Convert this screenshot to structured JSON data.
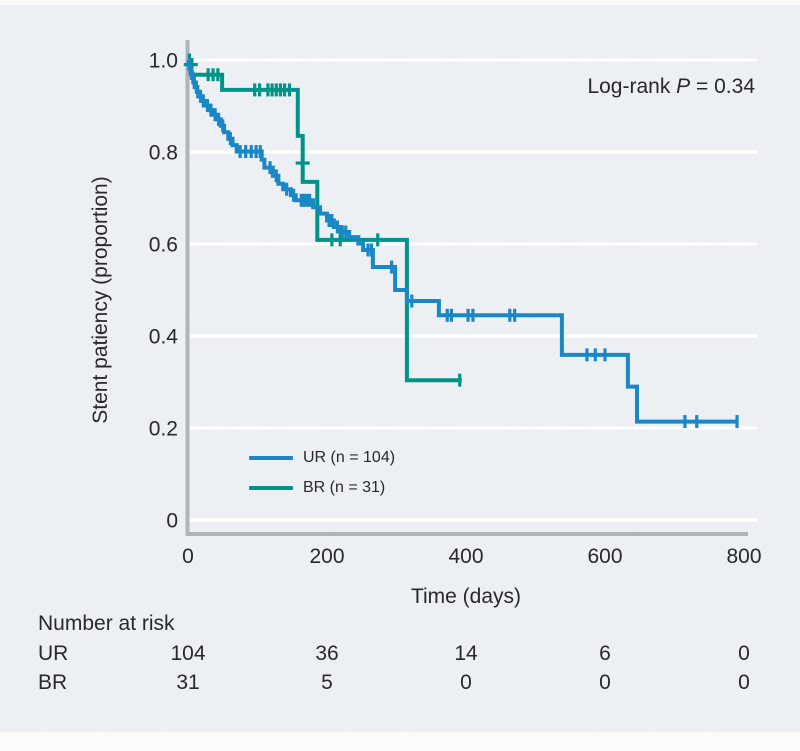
{
  "annotation": {
    "prefix": "Log-rank ",
    "italic": "P",
    "suffix": " = 0.34"
  },
  "risk_table": {
    "title": "Number at risk",
    "time_points": [
      0,
      200,
      400,
      600,
      800
    ],
    "rows": [
      {
        "label": "UR",
        "values": [
          "104",
          "36",
          "14",
          "6",
          "0"
        ]
      },
      {
        "label": "BR",
        "values": [
          "31",
          "5",
          "0",
          "0",
          "0"
        ]
      }
    ]
  },
  "chart_data": {
    "type": "line",
    "subtype": "kaplan-meier-step",
    "title": "",
    "xlabel": "Time (days)",
    "ylabel": "Stent patiency (proportion)",
    "xlim": [
      0,
      800
    ],
    "ylim": [
      0,
      1.0
    ],
    "xticks": [
      0,
      200,
      400,
      600,
      800
    ],
    "yticks": [
      {
        "v": 1.0,
        "label": "1.0"
      },
      {
        "v": 0.8,
        "label": "0.8"
      },
      {
        "v": 0.6,
        "label": "0.6"
      },
      {
        "v": 0.4,
        "label": "0.4"
      },
      {
        "v": 0.2,
        "label": "0.2"
      },
      {
        "v": 0.0,
        "label": "0"
      }
    ],
    "grid": "horizontal-white",
    "legend_position": "inside-bottom-left",
    "annotation_text": "Log-rank P = 0.34",
    "axis_color": "#b0b4b8",
    "gridline_color": "#ffffff",
    "text_color": "#27292b",
    "series": [
      {
        "name": "UR",
        "label": "UR (n = 104)",
        "n": 104,
        "color": "#1a87c6",
        "steps": [
          [
            0,
            1.0
          ],
          [
            1,
            0.99
          ],
          [
            2,
            0.981
          ],
          [
            4,
            0.971
          ],
          [
            6,
            0.961
          ],
          [
            8,
            0.951
          ],
          [
            10,
            0.941
          ],
          [
            13,
            0.931
          ],
          [
            16,
            0.921
          ],
          [
            20,
            0.911
          ],
          [
            25,
            0.901
          ],
          [
            30,
            0.891
          ],
          [
            36,
            0.881
          ],
          [
            42,
            0.871
          ],
          [
            47,
            0.857
          ],
          [
            52,
            0.843
          ],
          [
            58,
            0.829
          ],
          [
            64,
            0.815
          ],
          [
            70,
            0.801
          ],
          [
            106,
            0.783
          ],
          [
            110,
            0.766
          ],
          [
            122,
            0.748
          ],
          [
            130,
            0.731
          ],
          [
            137,
            0.719
          ],
          [
            148,
            0.706
          ],
          [
            155,
            0.695
          ],
          [
            180,
            0.68
          ],
          [
            190,
            0.666
          ],
          [
            200,
            0.651
          ],
          [
            210,
            0.637
          ],
          [
            220,
            0.626
          ],
          [
            232,
            0.615
          ],
          [
            245,
            0.601
          ],
          [
            252,
            0.587
          ],
          [
            266,
            0.55
          ],
          [
            298,
            0.5
          ],
          [
            315,
            0.476
          ],
          [
            361,
            0.445
          ],
          [
            538,
            0.359
          ],
          [
            633,
            0.29
          ],
          [
            646,
            0.214
          ]
        ],
        "end_day": 791,
        "censors": [
          [
            3,
            0.981
          ],
          [
            5,
            0.971
          ],
          [
            7,
            0.961
          ],
          [
            9,
            0.951
          ],
          [
            12,
            0.941
          ],
          [
            14,
            0.931
          ],
          [
            18,
            0.921
          ],
          [
            22,
            0.911
          ],
          [
            28,
            0.901
          ],
          [
            33,
            0.891
          ],
          [
            39,
            0.881
          ],
          [
            44,
            0.871
          ],
          [
            50,
            0.857
          ],
          [
            61,
            0.829
          ],
          [
            75,
            0.801
          ],
          [
            83,
            0.801
          ],
          [
            91,
            0.801
          ],
          [
            98,
            0.801
          ],
          [
            104,
            0.801
          ],
          [
            118,
            0.766
          ],
          [
            127,
            0.748
          ],
          [
            142,
            0.719
          ],
          [
            152,
            0.706
          ],
          [
            163,
            0.695
          ],
          [
            167,
            0.695
          ],
          [
            171,
            0.695
          ],
          [
            175,
            0.695
          ],
          [
            203,
            0.651
          ],
          [
            207,
            0.651
          ],
          [
            215,
            0.637
          ],
          [
            222,
            0.626
          ],
          [
            227,
            0.626
          ],
          [
            259,
            0.587
          ],
          [
            264,
            0.587
          ],
          [
            293,
            0.55
          ],
          [
            322,
            0.476
          ],
          [
            373,
            0.445
          ],
          [
            379,
            0.445
          ],
          [
            403,
            0.445
          ],
          [
            410,
            0.445
          ],
          [
            463,
            0.445
          ],
          [
            470,
            0.445
          ],
          [
            574,
            0.359
          ],
          [
            586,
            0.359
          ],
          [
            600,
            0.359
          ],
          [
            715,
            0.214
          ],
          [
            732,
            0.214
          ],
          [
            790,
            0.214
          ]
        ]
      },
      {
        "name": "BR",
        "label": "BR (n = 31)",
        "n": 31,
        "color": "#009389",
        "steps": [
          [
            0,
            1.0
          ],
          [
            5,
            0.968
          ],
          [
            49,
            0.935
          ],
          [
            158,
            0.835
          ],
          [
            165,
            0.735
          ],
          [
            186,
            0.609
          ],
          [
            315,
            0.304
          ]
        ],
        "end_day": 394,
        "censors": [
          [
            2,
            1.0
          ],
          [
            29,
            0.968
          ],
          [
            36,
            0.968
          ],
          [
            43,
            0.968
          ],
          [
            96,
            0.935
          ],
          [
            103,
            0.935
          ],
          [
            115,
            0.935
          ],
          [
            121,
            0.935
          ],
          [
            127,
            0.935
          ],
          [
            133,
            0.935
          ],
          [
            139,
            0.935
          ],
          [
            146,
            0.935
          ],
          [
            207,
            0.609
          ],
          [
            219,
            0.609
          ],
          [
            273,
            0.609
          ],
          [
            391,
            0.304
          ],
          [
            4,
            0.99,
            "h"
          ],
          [
            165,
            0.776,
            "h"
          ]
        ]
      }
    ]
  }
}
